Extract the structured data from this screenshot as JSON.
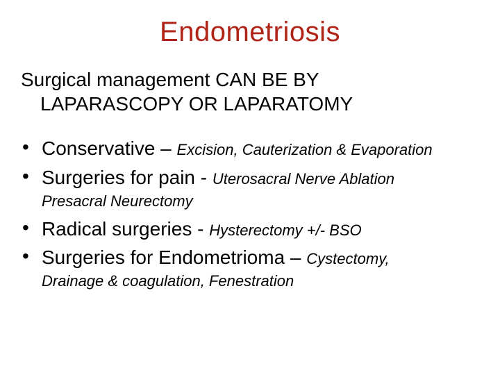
{
  "title": "Endometriosis",
  "title_color": "#b02418",
  "subtitle_line1": "Surgical management CAN BE BY",
  "subtitle_line2": "LAPARASCOPY OR LAPARATOMY",
  "bullets": [
    {
      "main": "Conservative – ",
      "sub": "Excision, Cauterization & Evaporation",
      "continuation": null
    },
    {
      "main": "Surgeries for pain - ",
      "sub": "Uterosacral Nerve Ablation",
      "continuation": "Presacral Neurectomy"
    },
    {
      "main": "Radical surgeries - ",
      "sub": "Hysterectomy +/- BSO",
      "continuation": null
    },
    {
      "main": "Surgeries for Endometrioma – ",
      "sub": "Cystectomy,",
      "continuation": "Drainage & coagulation, Fenestration"
    }
  ],
  "colors": {
    "background": "#ffffff",
    "text": "#000000",
    "title": "#b02418"
  },
  "typography": {
    "title_fontsize": 40,
    "subtitle_fontsize": 28,
    "main_fontsize": 28,
    "sub_fontsize": 22,
    "title_font": "Arial",
    "subtitle_font": "Arial",
    "bullet_font": "Trebuchet MS"
  }
}
